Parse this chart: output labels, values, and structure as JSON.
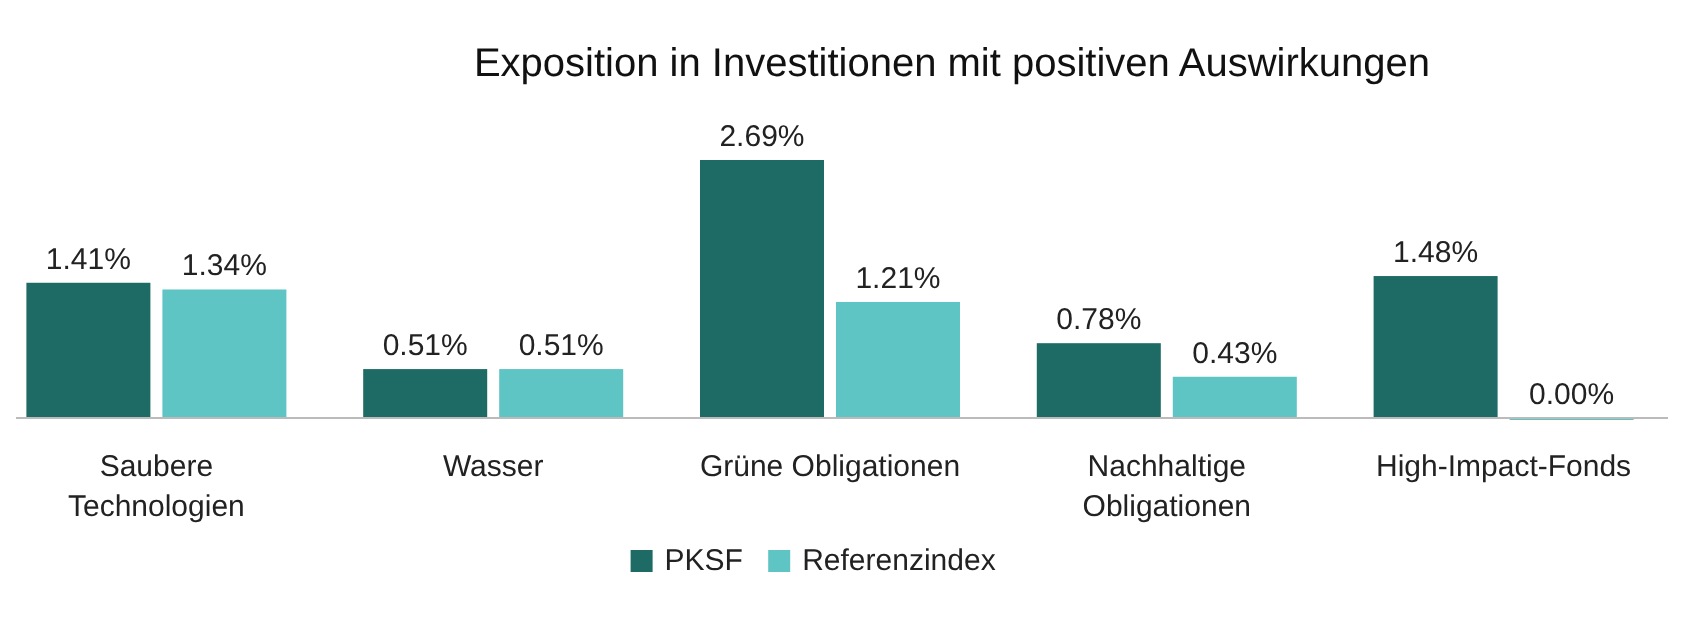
{
  "chart_data": {
    "type": "bar",
    "title": "Exposition in Investitionen mit positiven Auswirkungen",
    "categories": [
      "Saubere Technologien",
      "Wasser",
      "Grüne Obligationen",
      "Nachhaltige Obligationen",
      "High-Impact-Fonds"
    ],
    "series": [
      {
        "name": "PKSF",
        "color": "#1d6b64",
        "values": [
          1.41,
          0.51,
          2.69,
          0.78,
          1.48
        ],
        "value_labels": [
          "1.41%",
          "0.51%",
          "2.69%",
          "0.78%",
          "1.48%"
        ]
      },
      {
        "name": "Referenzindex",
        "color": "#5fc4c4",
        "values": [
          1.34,
          0.51,
          1.21,
          0.43,
          0.0
        ],
        "value_labels": [
          "1.34%",
          "0.51%",
          "1.21%",
          "0.43%",
          "0.00%"
        ]
      }
    ],
    "relative": false,
    "legend": "bottom",
    "grid": false
  }
}
